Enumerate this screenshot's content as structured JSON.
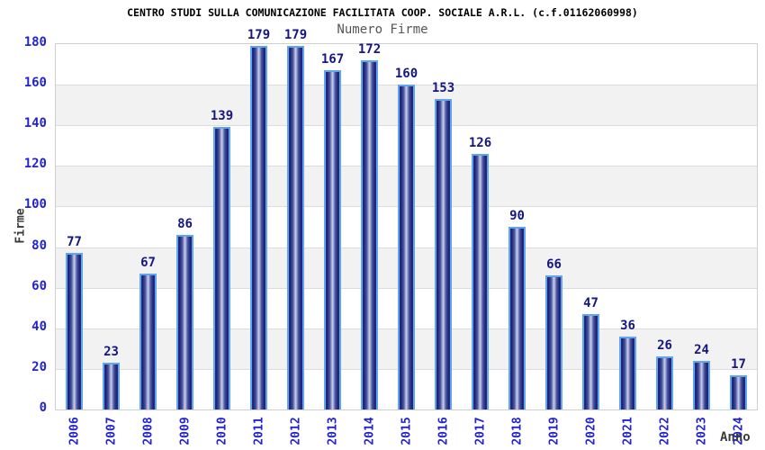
{
  "header": {
    "title": "CENTRO STUDI SULLA COMUNICAZIONE FACILITATA COOP. SOCIALE A.R.L. (c.f.01162060998)",
    "subtitle": "Numero Firme"
  },
  "chart_data": {
    "type": "bar",
    "title": "CENTRO STUDI SULLA COMUNICAZIONE FACILITATA COOP. SOCIALE A.R.L. (c.f.01162060998)",
    "subtitle": "Numero Firme",
    "categories": [
      "2006",
      "2007",
      "2008",
      "2009",
      "2010",
      "2011",
      "2012",
      "2013",
      "2014",
      "2015",
      "2016",
      "2017",
      "2018",
      "2019",
      "2020",
      "2021",
      "2022",
      "2023",
      "2024"
    ],
    "values": [
      77,
      23,
      67,
      86,
      139,
      179,
      179,
      167,
      172,
      160,
      153,
      126,
      90,
      66,
      47,
      36,
      26,
      24,
      17
    ],
    "xlabel": "Anno",
    "ylabel": "Firme",
    "ylim": [
      0,
      180
    ],
    "ytick_step": 20,
    "yticks": [
      0,
      20,
      40,
      60,
      80,
      100,
      120,
      140,
      160,
      180
    ],
    "grid": true,
    "banded_background": true,
    "legend": "none",
    "bar_labels_shown": true
  },
  "colors": {
    "tick_label": "#2323cc",
    "value_label": "#16167e",
    "bar_border": "#61a6ec",
    "bar_edge_dark": "#1a2178",
    "bar_edge_mid": "#242e8c",
    "bar_body_mid": "#4a569f",
    "bar_center_light": "#ccd2ec",
    "gridline": "#dcdcdc",
    "band_fill": "#f2f2f2",
    "plot_border": "#cfcfcf",
    "title_color": "#000000",
    "subtitle_color": "#555555",
    "axis_title_color": "#3a3a3a",
    "background": "#ffffff"
  }
}
